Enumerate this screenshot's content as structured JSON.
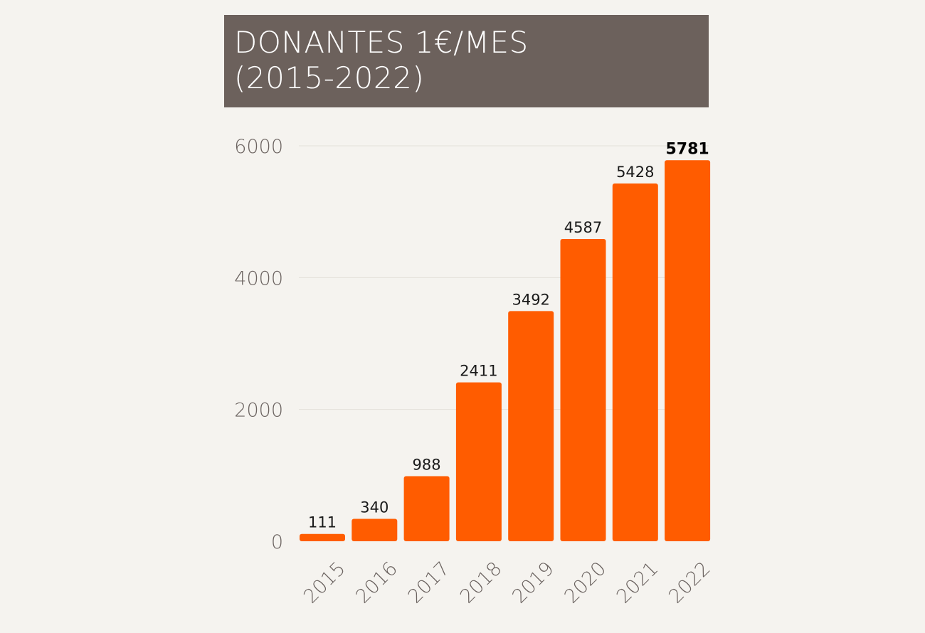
{
  "title": {
    "line1": "DONANTES 1€/MES",
    "line2": "(2015-2022)"
  },
  "colors": {
    "bar": "#ff5c00",
    "title_bg": "#6c615c",
    "axis_text": "#6b6360",
    "label_text": "#1a1a1a",
    "gridline": "#e4e0da",
    "background": "#f5f3ef"
  },
  "chart_data": {
    "type": "bar",
    "title": "DONANTES 1€/MES (2015-2022)",
    "xlabel": "",
    "ylabel": "",
    "categories": [
      "2015",
      "2016",
      "2017",
      "2018",
      "2019",
      "2020",
      "2021",
      "2022"
    ],
    "values": [
      111,
      340,
      988,
      2411,
      3492,
      4587,
      5428,
      5781
    ],
    "value_labels": [
      "111",
      "340",
      "988",
      "2411",
      "3492",
      "4587",
      "5428",
      "5781"
    ],
    "highlight_index": 7,
    "ylim": [
      0,
      6000
    ],
    "yticks": [
      0,
      2000,
      4000,
      6000
    ],
    "ytick_labels": [
      "0",
      "2000",
      "4000",
      "6000"
    ],
    "grid": true,
    "legend": "none"
  }
}
